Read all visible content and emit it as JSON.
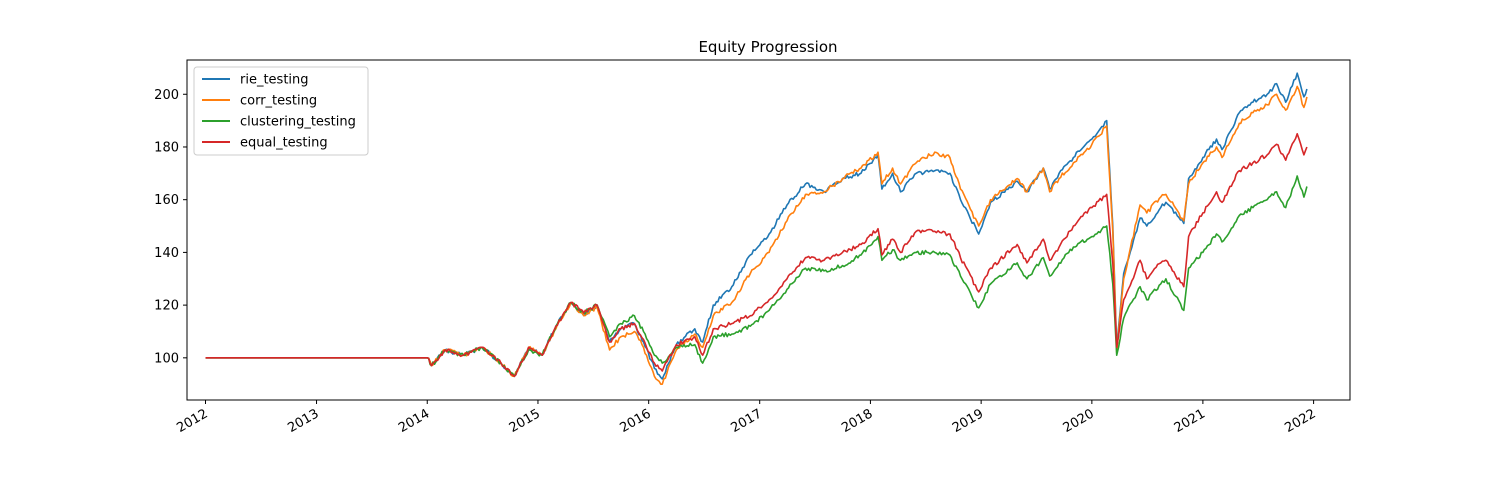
{
  "chart_data": {
    "type": "line",
    "title": "Equity Progression",
    "xlabel": "",
    "ylabel": "",
    "x_ticks": [
      "2012",
      "2013",
      "2014",
      "2015",
      "2016",
      "2017",
      "2018",
      "2019",
      "2020",
      "2021",
      "2022"
    ],
    "y_ticks": [
      100,
      120,
      140,
      160,
      180,
      200
    ],
    "xlim": [
      "2011-11-01",
      "2022-05-01"
    ],
    "ylim": [
      84,
      213
    ],
    "legend_position": "upper-left",
    "grid": false,
    "series": [
      {
        "name": "rie_testing",
        "color": "#1f77b4",
        "points": [
          [
            "2012-01-01",
            100
          ],
          [
            "2014-01-01",
            100
          ],
          [
            "2014-01-15",
            97
          ],
          [
            "2014-03-01",
            103
          ],
          [
            "2014-05-01",
            101
          ],
          [
            "2014-07-01",
            104
          ],
          [
            "2014-09-01",
            98
          ],
          [
            "2014-10-15",
            93
          ],
          [
            "2014-12-01",
            104
          ],
          [
            "2015-01-15",
            101
          ],
          [
            "2015-03-01",
            112
          ],
          [
            "2015-04-20",
            121
          ],
          [
            "2015-06-01",
            116
          ],
          [
            "2015-07-15",
            120
          ],
          [
            "2015-08-25",
            106
          ],
          [
            "2015-10-01",
            111
          ],
          [
            "2015-11-15",
            113
          ],
          [
            "2015-12-15",
            106
          ],
          [
            "2016-01-20",
            96
          ],
          [
            "2016-02-15",
            92
          ],
          [
            "2016-04-01",
            105
          ],
          [
            "2016-06-01",
            111
          ],
          [
            "2016-06-27",
            106
          ],
          [
            "2016-08-01",
            120
          ],
          [
            "2016-10-01",
            127
          ],
          [
            "2016-12-01",
            139
          ],
          [
            "2017-02-01",
            147
          ],
          [
            "2017-04-01",
            158
          ],
          [
            "2017-06-01",
            166
          ],
          [
            "2017-08-01",
            163
          ],
          [
            "2017-10-01",
            168
          ],
          [
            "2017-12-01",
            170
          ],
          [
            "2018-01-26",
            177
          ],
          [
            "2018-02-08",
            164
          ],
          [
            "2018-03-15",
            170
          ],
          [
            "2018-04-10",
            163
          ],
          [
            "2018-06-01",
            170
          ],
          [
            "2018-08-01",
            171
          ],
          [
            "2018-09-20",
            170
          ],
          [
            "2018-10-25",
            160
          ],
          [
            "2018-12-24",
            147
          ],
          [
            "2019-02-01",
            159
          ],
          [
            "2019-04-30",
            167
          ],
          [
            "2019-06-01",
            163
          ],
          [
            "2019-07-25",
            172
          ],
          [
            "2019-08-15",
            164
          ],
          [
            "2019-09-15",
            170
          ],
          [
            "2019-11-01",
            176
          ],
          [
            "2020-01-01",
            183
          ],
          [
            "2020-02-19",
            190
          ],
          [
            "2020-03-10",
            150
          ],
          [
            "2020-03-23",
            104
          ],
          [
            "2020-04-15",
            132
          ],
          [
            "2020-06-08",
            153
          ],
          [
            "2020-06-30",
            150
          ],
          [
            "2020-08-15",
            157
          ],
          [
            "2020-09-01",
            159
          ],
          [
            "2020-10-30",
            151
          ],
          [
            "2020-11-15",
            168
          ],
          [
            "2021-01-01",
            176
          ],
          [
            "2021-02-15",
            183
          ],
          [
            "2021-03-05",
            179
          ],
          [
            "2021-05-01",
            193
          ],
          [
            "2021-06-15",
            197
          ],
          [
            "2021-08-01",
            200
          ],
          [
            "2021-09-01",
            204
          ],
          [
            "2021-10-01",
            197
          ],
          [
            "2021-11-08",
            208
          ],
          [
            "2021-11-30",
            199
          ],
          [
            "2021-12-10",
            202
          ]
        ]
      },
      {
        "name": "corr_testing",
        "color": "#ff7f0e",
        "points": [
          [
            "2012-01-01",
            100
          ],
          [
            "2014-01-01",
            100
          ],
          [
            "2014-01-15",
            97
          ],
          [
            "2014-03-01",
            103
          ],
          [
            "2014-05-01",
            101
          ],
          [
            "2014-07-01",
            104
          ],
          [
            "2014-09-01",
            98
          ],
          [
            "2014-10-15",
            93
          ],
          [
            "2014-12-01",
            104
          ],
          [
            "2015-01-15",
            101
          ],
          [
            "2015-03-01",
            111
          ],
          [
            "2015-04-20",
            121
          ],
          [
            "2015-06-01",
            116
          ],
          [
            "2015-07-15",
            119
          ],
          [
            "2015-08-25",
            103
          ],
          [
            "2015-10-01",
            108
          ],
          [
            "2015-11-15",
            110
          ],
          [
            "2015-12-15",
            104
          ],
          [
            "2016-01-20",
            93
          ],
          [
            "2016-02-15",
            90
          ],
          [
            "2016-04-01",
            103
          ],
          [
            "2016-06-01",
            109
          ],
          [
            "2016-06-27",
            104
          ],
          [
            "2016-08-01",
            116
          ],
          [
            "2016-10-01",
            121
          ],
          [
            "2016-12-01",
            132
          ],
          [
            "2017-02-01",
            140
          ],
          [
            "2017-04-01",
            152
          ],
          [
            "2017-06-01",
            162
          ],
          [
            "2017-08-01",
            163
          ],
          [
            "2017-10-01",
            168
          ],
          [
            "2017-12-01",
            172
          ],
          [
            "2018-01-26",
            178
          ],
          [
            "2018-02-08",
            166
          ],
          [
            "2018-03-15",
            172
          ],
          [
            "2018-04-10",
            166
          ],
          [
            "2018-06-01",
            174
          ],
          [
            "2018-08-01",
            178
          ],
          [
            "2018-09-20",
            176
          ],
          [
            "2018-10-25",
            164
          ],
          [
            "2018-12-24",
            150
          ],
          [
            "2019-02-01",
            160
          ],
          [
            "2019-04-30",
            168
          ],
          [
            "2019-06-01",
            163
          ],
          [
            "2019-07-25",
            172
          ],
          [
            "2019-08-15",
            163
          ],
          [
            "2019-09-15",
            168
          ],
          [
            "2019-11-01",
            174
          ],
          [
            "2020-01-01",
            181
          ],
          [
            "2020-02-19",
            188
          ],
          [
            "2020-03-10",
            148
          ],
          [
            "2020-03-23",
            102
          ],
          [
            "2020-04-15",
            130
          ],
          [
            "2020-06-08",
            158
          ],
          [
            "2020-06-30",
            155
          ],
          [
            "2020-08-15",
            161
          ],
          [
            "2020-09-01",
            162
          ],
          [
            "2020-10-30",
            152
          ],
          [
            "2020-11-15",
            166
          ],
          [
            "2021-01-01",
            174
          ],
          [
            "2021-02-15",
            180
          ],
          [
            "2021-03-05",
            176
          ],
          [
            "2021-05-01",
            189
          ],
          [
            "2021-06-15",
            193
          ],
          [
            "2021-08-01",
            196
          ],
          [
            "2021-09-01",
            200
          ],
          [
            "2021-10-01",
            194
          ],
          [
            "2021-11-08",
            203
          ],
          [
            "2021-11-30",
            195
          ],
          [
            "2021-12-10",
            199
          ]
        ]
      },
      {
        "name": "clustering_testing",
        "color": "#2ca02c",
        "points": [
          [
            "2012-01-01",
            100
          ],
          [
            "2014-01-01",
            100
          ],
          [
            "2014-01-15",
            97
          ],
          [
            "2014-03-01",
            103
          ],
          [
            "2014-05-01",
            101
          ],
          [
            "2014-07-01",
            104
          ],
          [
            "2014-09-01",
            98
          ],
          [
            "2014-10-15",
            93
          ],
          [
            "2014-12-01",
            103
          ],
          [
            "2015-01-15",
            101
          ],
          [
            "2015-03-01",
            112
          ],
          [
            "2015-04-20",
            121
          ],
          [
            "2015-06-01",
            117
          ],
          [
            "2015-07-15",
            120
          ],
          [
            "2015-08-25",
            108
          ],
          [
            "2015-10-01",
            113
          ],
          [
            "2015-11-15",
            116
          ],
          [
            "2015-12-15",
            110
          ],
          [
            "2016-01-20",
            101
          ],
          [
            "2016-02-15",
            98
          ],
          [
            "2016-04-01",
            104
          ],
          [
            "2016-06-01",
            105
          ],
          [
            "2016-06-27",
            98
          ],
          [
            "2016-08-01",
            108
          ],
          [
            "2016-10-01",
            109
          ],
          [
            "2016-12-01",
            112
          ],
          [
            "2017-02-01",
            118
          ],
          [
            "2017-04-01",
            126
          ],
          [
            "2017-06-01",
            134
          ],
          [
            "2017-08-01",
            133
          ],
          [
            "2017-10-01",
            135
          ],
          [
            "2017-12-01",
            139
          ],
          [
            "2018-01-26",
            146
          ],
          [
            "2018-02-08",
            137
          ],
          [
            "2018-03-15",
            141
          ],
          [
            "2018-04-10",
            137
          ],
          [
            "2018-06-01",
            140
          ],
          [
            "2018-08-01",
            140
          ],
          [
            "2018-09-20",
            139
          ],
          [
            "2018-10-25",
            131
          ],
          [
            "2018-12-24",
            119
          ],
          [
            "2019-02-01",
            128
          ],
          [
            "2019-04-30",
            136
          ],
          [
            "2019-06-01",
            130
          ],
          [
            "2019-07-25",
            138
          ],
          [
            "2019-08-15",
            131
          ],
          [
            "2019-09-15",
            136
          ],
          [
            "2019-11-01",
            142
          ],
          [
            "2020-01-01",
            146
          ],
          [
            "2020-02-19",
            150
          ],
          [
            "2020-03-10",
            128
          ],
          [
            "2020-03-23",
            101
          ],
          [
            "2020-04-15",
            115
          ],
          [
            "2020-06-08",
            127
          ],
          [
            "2020-06-30",
            122
          ],
          [
            "2020-08-15",
            128
          ],
          [
            "2020-09-01",
            130
          ],
          [
            "2020-10-30",
            118
          ],
          [
            "2020-11-15",
            134
          ],
          [
            "2021-01-01",
            140
          ],
          [
            "2021-02-15",
            147
          ],
          [
            "2021-03-05",
            144
          ],
          [
            "2021-05-01",
            154
          ],
          [
            "2021-06-15",
            157
          ],
          [
            "2021-08-01",
            160
          ],
          [
            "2021-09-01",
            163
          ],
          [
            "2021-10-01",
            157
          ],
          [
            "2021-11-08",
            169
          ],
          [
            "2021-11-30",
            161
          ],
          [
            "2021-12-10",
            165
          ]
        ]
      },
      {
        "name": "equal_testing",
        "color": "#d62728",
        "points": [
          [
            "2012-01-01",
            100
          ],
          [
            "2014-01-01",
            100
          ],
          [
            "2014-01-15",
            97
          ],
          [
            "2014-03-01",
            103
          ],
          [
            "2014-05-01",
            101
          ],
          [
            "2014-07-01",
            104
          ],
          [
            "2014-09-01",
            98
          ],
          [
            "2014-10-15",
            93
          ],
          [
            "2014-12-01",
            104
          ],
          [
            "2015-01-15",
            101
          ],
          [
            "2015-03-01",
            112
          ],
          [
            "2015-04-20",
            121
          ],
          [
            "2015-06-01",
            117
          ],
          [
            "2015-07-15",
            120
          ],
          [
            "2015-08-25",
            106
          ],
          [
            "2015-10-01",
            111
          ],
          [
            "2015-11-15",
            113
          ],
          [
            "2015-12-15",
            107
          ],
          [
            "2016-01-20",
            98
          ],
          [
            "2016-02-15",
            95
          ],
          [
            "2016-04-01",
            105
          ],
          [
            "2016-06-01",
            108
          ],
          [
            "2016-06-27",
            101
          ],
          [
            "2016-08-01",
            111
          ],
          [
            "2016-10-01",
            113
          ],
          [
            "2016-12-01",
            116
          ],
          [
            "2017-02-01",
            122
          ],
          [
            "2017-04-01",
            130
          ],
          [
            "2017-06-01",
            138
          ],
          [
            "2017-08-01",
            137
          ],
          [
            "2017-10-01",
            140
          ],
          [
            "2017-12-01",
            143
          ],
          [
            "2018-01-26",
            149
          ],
          [
            "2018-02-08",
            139
          ],
          [
            "2018-03-15",
            145
          ],
          [
            "2018-04-10",
            140
          ],
          [
            "2018-06-01",
            148
          ],
          [
            "2018-08-01",
            148
          ],
          [
            "2018-09-20",
            147
          ],
          [
            "2018-10-25",
            138
          ],
          [
            "2018-12-24",
            125
          ],
          [
            "2019-02-01",
            134
          ],
          [
            "2019-04-30",
            143
          ],
          [
            "2019-06-01",
            136
          ],
          [
            "2019-07-25",
            145
          ],
          [
            "2019-08-15",
            137
          ],
          [
            "2019-09-15",
            142
          ],
          [
            "2019-11-01",
            150
          ],
          [
            "2020-01-01",
            157
          ],
          [
            "2020-02-19",
            162
          ],
          [
            "2020-03-10",
            136
          ],
          [
            "2020-03-23",
            104
          ],
          [
            "2020-04-15",
            122
          ],
          [
            "2020-06-08",
            137
          ],
          [
            "2020-06-30",
            130
          ],
          [
            "2020-08-15",
            136
          ],
          [
            "2020-09-01",
            137
          ],
          [
            "2020-10-30",
            127
          ],
          [
            "2020-11-15",
            146
          ],
          [
            "2021-01-01",
            155
          ],
          [
            "2021-02-15",
            163
          ],
          [
            "2021-03-05",
            159
          ],
          [
            "2021-05-01",
            171
          ],
          [
            "2021-06-15",
            174
          ],
          [
            "2021-08-01",
            177
          ],
          [
            "2021-09-01",
            181
          ],
          [
            "2021-10-01",
            175
          ],
          [
            "2021-11-08",
            185
          ],
          [
            "2021-11-30",
            177
          ],
          [
            "2021-12-10",
            180
          ]
        ]
      }
    ]
  }
}
